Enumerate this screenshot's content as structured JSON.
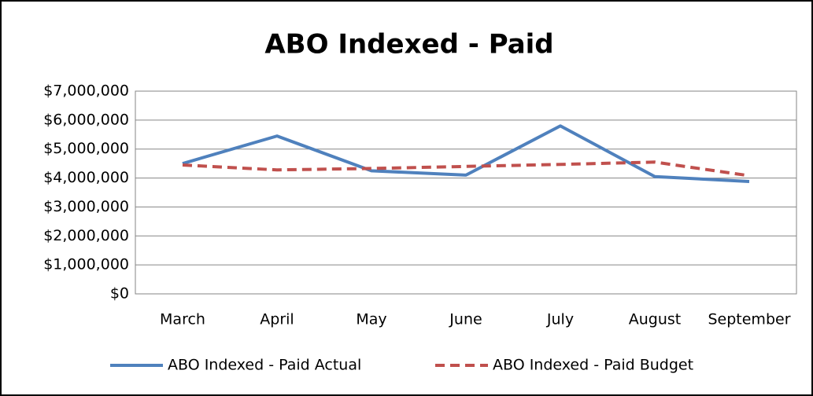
{
  "chart_data": {
    "type": "line",
    "title": "ABO Indexed - Paid",
    "categories": [
      "March",
      "April",
      "May",
      "June",
      "July",
      "August",
      "September"
    ],
    "series": [
      {
        "name": "ABO Indexed - Paid Actual",
        "color": "#4f81bd",
        "dash": false,
        "values": [
          4500000,
          5450000,
          4250000,
          4100000,
          5800000,
          4050000,
          3880000
        ]
      },
      {
        "name": "ABO Indexed - Paid Budget",
        "color": "#c0504d",
        "dash": true,
        "values": [
          4450000,
          4280000,
          4330000,
          4400000,
          4470000,
          4550000,
          4080000
        ]
      }
    ],
    "ylim": [
      0,
      7000000
    ],
    "yticks": [
      {
        "value": 0,
        "label": "$0"
      },
      {
        "value": 1000000,
        "label": "$1,000,000"
      },
      {
        "value": 2000000,
        "label": "$2,000,000"
      },
      {
        "value": 3000000,
        "label": "$3,000,000"
      },
      {
        "value": 4000000,
        "label": "$4,000,000"
      },
      {
        "value": 5000000,
        "label": "$5,000,000"
      },
      {
        "value": 6000000,
        "label": "$6,000,000"
      },
      {
        "value": 7000000,
        "label": "$7,000,000"
      }
    ],
    "grid": true,
    "legend": "bottom"
  }
}
